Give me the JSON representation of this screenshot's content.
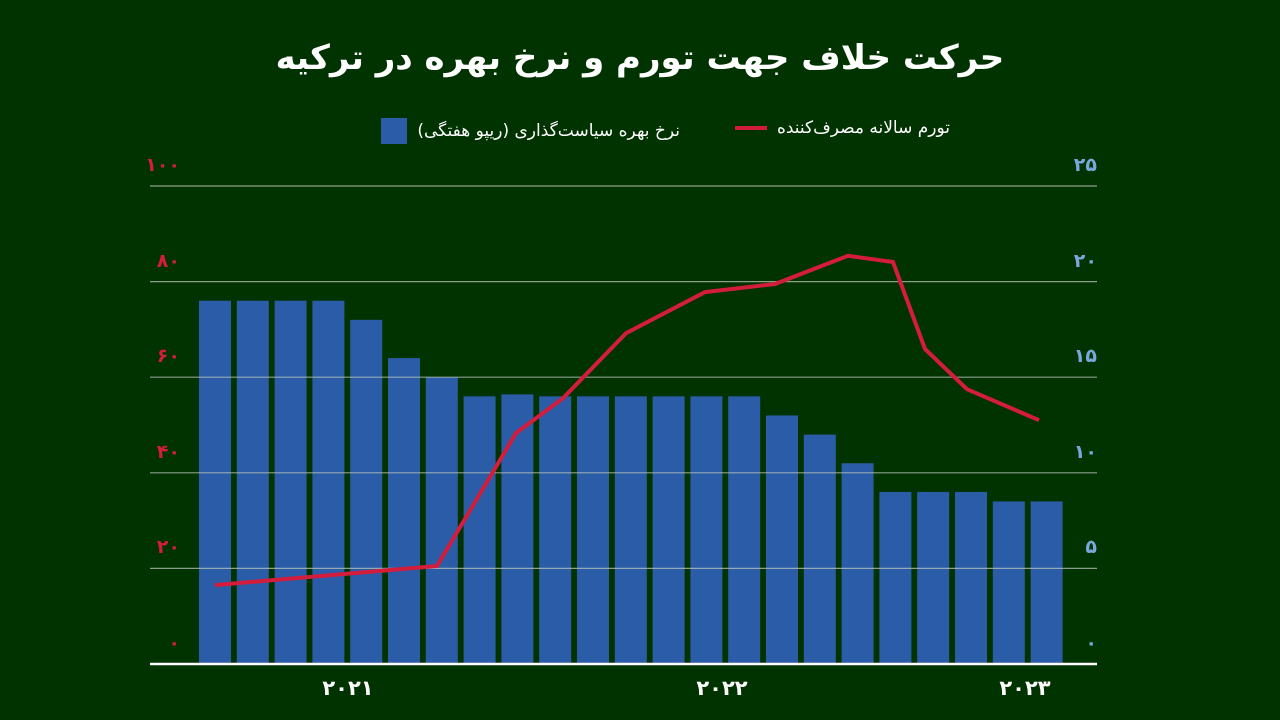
{
  "title": "حرکت خلاف جهت تورم و نرخ بهره در ترکیه",
  "legend": {
    "inflation": "تورم سالانه مصرف‌کننده",
    "policy_rate": "نرخ بهره سیاست‌گذاری (ریپو هفتگی)"
  },
  "colors": {
    "background": "#003300",
    "bar": "#2a5ca8",
    "line": "#d41c3c",
    "left_axis_text": "#d41c3c",
    "right_axis_text": "#7aa8dc",
    "grid": "#b8c4b8",
    "axis": "#ffffff"
  },
  "left_axis_labels": [
    "۰",
    "۲۰",
    "۴۰",
    "۶۰",
    "۸۰",
    "۱۰۰"
  ],
  "right_axis_labels": [
    "۰",
    "۵",
    "۱۰",
    "۱۵",
    "۲۰",
    "۲۵"
  ],
  "x_labels": [
    {
      "label": "۲۰۲۱",
      "x": 348
    },
    {
      "label": "۲۰۲۲",
      "x": 722
    },
    {
      "label": "۲۰۲۳",
      "x": 1025
    }
  ],
  "chart_data": {
    "type": "bar+line",
    "title": "حرکت خلاف جهت تورم و نرخ بهره در ترکیه",
    "xlabel": "",
    "x_tick_labels": [
      "2021",
      "2022",
      "2023"
    ],
    "grid": true,
    "legend_position": "top",
    "series": [
      {
        "name": "نرخ بهره سیاست‌گذاری (ریپو هفتگی)",
        "type": "bar",
        "axis": "right",
        "ylim": [
          0,
          25
        ],
        "values": [
          19,
          19,
          19,
          19,
          18,
          16,
          15,
          14,
          14.1,
          14,
          14,
          14,
          14,
          14,
          14,
          13,
          12,
          10.5,
          9,
          9,
          9,
          8.5,
          8.5
        ]
      },
      {
        "name": "تورم سالانه مصرف‌کننده",
        "type": "line",
        "axis": "left",
        "ylim": [
          0,
          100
        ],
        "points": [
          {
            "x": 215,
            "value": 16.5
          },
          {
            "x": 437,
            "value": 20.5
          },
          {
            "x": 516,
            "value": 48.3
          },
          {
            "x": 563,
            "value": 55.6
          },
          {
            "x": 626,
            "value": 69.2
          },
          {
            "x": 705,
            "value": 77.8
          },
          {
            "x": 775,
            "value": 79.5
          },
          {
            "x": 848,
            "value": 85.4
          },
          {
            "x": 893,
            "value": 84.1
          },
          {
            "x": 925,
            "value": 65.9
          },
          {
            "x": 967,
            "value": 57.5
          },
          {
            "x": 1039,
            "value": 51.0
          }
        ]
      }
    ]
  }
}
